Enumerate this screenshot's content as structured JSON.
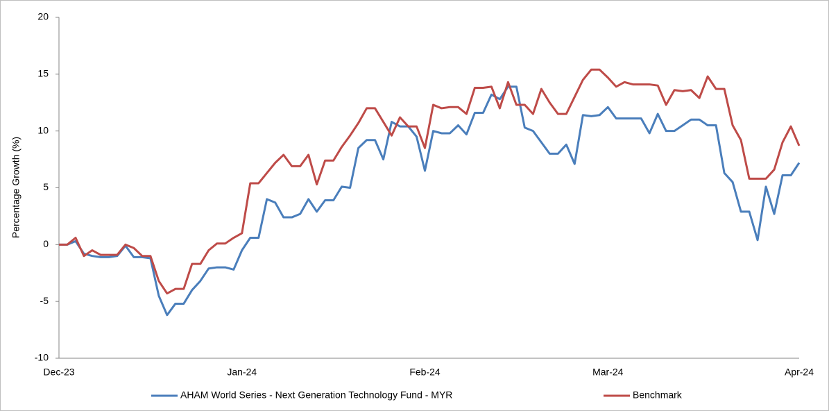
{
  "chart_data": {
    "type": "line",
    "y_label": "Percentage Growth (%)",
    "categories": [
      "Dec-23",
      null,
      null,
      null,
      null,
      null,
      null,
      null,
      null,
      null,
      null,
      null,
      null,
      null,
      null,
      null,
      null,
      null,
      null,
      null,
      null,
      null,
      "Jan-24",
      null,
      null,
      null,
      null,
      null,
      null,
      null,
      null,
      null,
      null,
      null,
      null,
      null,
      null,
      null,
      null,
      null,
      null,
      null,
      null,
      null,
      "Feb-24",
      null,
      null,
      null,
      null,
      null,
      null,
      null,
      null,
      null,
      null,
      null,
      null,
      null,
      null,
      null,
      null,
      null,
      null,
      null,
      null,
      null,
      "Mar-24",
      null,
      null,
      null,
      null,
      null,
      null,
      null,
      null,
      null,
      null,
      null,
      null,
      null,
      null,
      null,
      null,
      null,
      null,
      null,
      null,
      null,
      null,
      "Apr-24"
    ],
    "series": [
      {
        "name": "AHAM World Series - Next Generation Technology Fund - MYR",
        "color": "#4a7ebb",
        "values": [
          0,
          0,
          0.3,
          -0.8,
          -1.0,
          -1.1,
          -1.1,
          -1.0,
          -0.1,
          -1.1,
          -1.1,
          -1.2,
          -4.5,
          -6.2,
          -5.2,
          -5.2,
          -4.0,
          -3.2,
          -2.1,
          -2.0,
          -2.0,
          -2.2,
          -0.5,
          0.6,
          0.6,
          4.0,
          3.7,
          2.4,
          2.4,
          2.7,
          4.0,
          2.9,
          3.9,
          3.9,
          5.1,
          5.0,
          8.5,
          9.2,
          9.2,
          7.5,
          10.8,
          10.4,
          10.4,
          9.5,
          6.5,
          10.0,
          9.8,
          9.8,
          10.5,
          9.7,
          11.6,
          11.6,
          13.2,
          12.8,
          13.9,
          13.9,
          10.3,
          10.0,
          9.0,
          8.0,
          8.0,
          8.8,
          7.1,
          11.4,
          11.3,
          11.4,
          12.1,
          11.1,
          11.1,
          11.1,
          11.1,
          9.8,
          11.5,
          10.0,
          10.0,
          10.5,
          11.0,
          11.0,
          10.5,
          10.5,
          6.3,
          5.5,
          2.9,
          2.9,
          0.4,
          5.1,
          2.7,
          6.1,
          6.1,
          7.2
        ]
      },
      {
        "name": "Benchmark",
        "color": "#be4b48",
        "values": [
          0,
          0,
          0.6,
          -1.0,
          -0.5,
          -0.9,
          -0.9,
          -0.9,
          0,
          -0.3,
          -1.0,
          -1.0,
          -3.2,
          -4.3,
          -3.9,
          -3.9,
          -1.7,
          -1.7,
          -0.5,
          0.1,
          0.1,
          0.6,
          1.0,
          5.4,
          5.4,
          6.3,
          7.2,
          7.9,
          6.9,
          6.9,
          7.9,
          5.3,
          7.4,
          7.4,
          8.6,
          9.6,
          10.7,
          12.0,
          12.0,
          10.8,
          9.6,
          11.2,
          10.4,
          10.4,
          8.5,
          12.3,
          12.0,
          12.1,
          12.1,
          11.5,
          13.8,
          13.8,
          13.9,
          12.0,
          14.3,
          12.3,
          12.3,
          11.5,
          13.7,
          12.5,
          11.5,
          11.5,
          13.0,
          14.5,
          15.4,
          15.4,
          14.7,
          13.9,
          14.3,
          14.1,
          14.1,
          14.1,
          14.0,
          12.3,
          13.6,
          13.5,
          13.6,
          12.9,
          14.8,
          13.7,
          13.7,
          10.5,
          9.2,
          5.8,
          5.8,
          5.8,
          6.6,
          9.0,
          10.4,
          8.7
        ]
      }
    ],
    "ylim": [
      -10,
      20
    ],
    "yticks": [
      -10,
      -5,
      0,
      5,
      10,
      15,
      20
    ],
    "grid": false,
    "legend": "bottom"
  }
}
